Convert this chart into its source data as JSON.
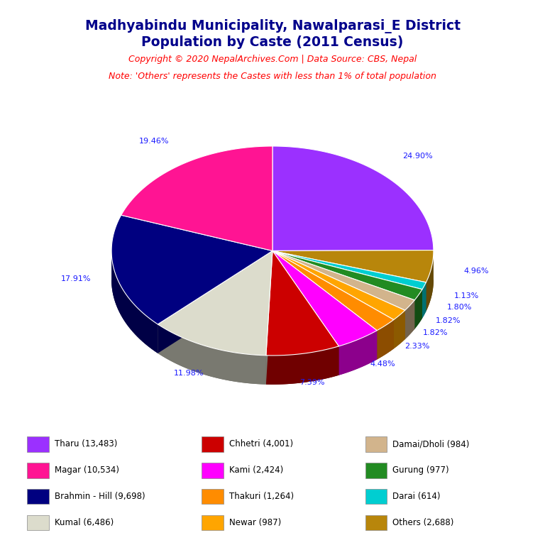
{
  "title_line1": "Madhyabindu Municipality, Nawalparasi_E District",
  "title_line2": "Population by Caste (2011 Census)",
  "title_color": "#00008B",
  "copyright_text": "Copyright © 2020 NepalArchives.Com | Data Source: CBS, Nepal",
  "note_text": "Note: 'Others' represents the Castes with less than 1% of total population",
  "red_text_color": "#FF0000",
  "label_color": "#1a1aff",
  "background_color": "#FFFFFF",
  "slices_ordered": [
    {
      "label": "Tharu",
      "pct": 24.9,
      "color": "#9B30FF"
    },
    {
      "label": "Others",
      "pct": 4.96,
      "color": "#B8860B"
    },
    {
      "label": "Darai",
      "pct": 1.13,
      "color": "#00CED1"
    },
    {
      "label": "Gurung",
      "pct": 1.8,
      "color": "#228B22"
    },
    {
      "label": "Damai/Dholi",
      "pct": 1.82,
      "color": "#D2B48C"
    },
    {
      "label": "Newar",
      "pct": 1.82,
      "color": "#FFA500"
    },
    {
      "label": "Thakuri",
      "pct": 2.33,
      "color": "#FF8C00"
    },
    {
      "label": "Kami",
      "pct": 4.48,
      "color": "#FF00FF"
    },
    {
      "label": "Chhetri",
      "pct": 7.39,
      "color": "#CC0000"
    },
    {
      "label": "Kumal",
      "pct": 11.98,
      "color": "#DCDCCC"
    },
    {
      "label": "Brahmin - Hill",
      "pct": 17.91,
      "color": "#000080"
    },
    {
      "label": "Magar",
      "pct": 19.46,
      "color": "#FF1493"
    }
  ],
  "legend_entries": [
    {
      "label": "Tharu (13,483)",
      "color": "#9B30FF"
    },
    {
      "label": "Magar (10,534)",
      "color": "#FF1493"
    },
    {
      "label": "Brahmin - Hill (9,698)",
      "color": "#000080"
    },
    {
      "label": "Kumal (6,486)",
      "color": "#DCDCCC"
    },
    {
      "label": "Chhetri (4,001)",
      "color": "#CC0000"
    },
    {
      "label": "Kami (2,424)",
      "color": "#FF00FF"
    },
    {
      "label": "Thakuri (1,264)",
      "color": "#FF8C00"
    },
    {
      "label": "Newar (987)",
      "color": "#FFA500"
    },
    {
      "label": "Damai/Dholi (984)",
      "color": "#D2B48C"
    },
    {
      "label": "Gurung (977)",
      "color": "#228B22"
    },
    {
      "label": "Darai (614)",
      "color": "#00CED1"
    },
    {
      "label": "Others (2,688)",
      "color": "#B8860B"
    }
  ]
}
